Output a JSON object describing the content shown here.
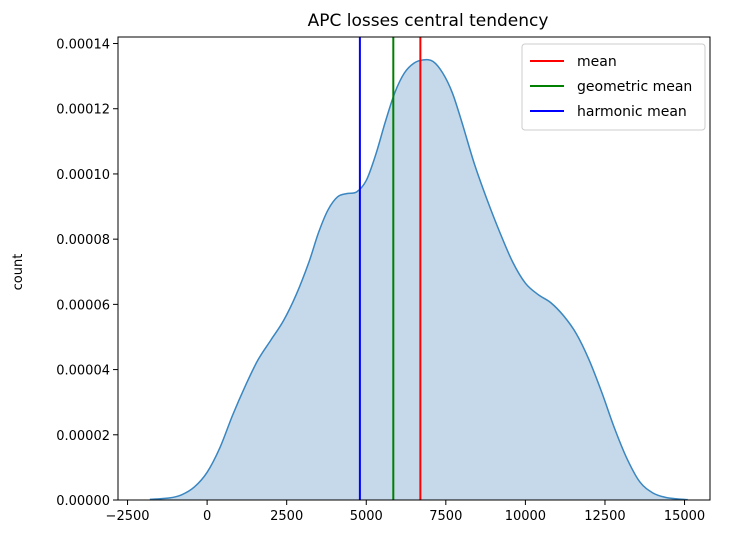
{
  "chart_data": {
    "type": "area",
    "title": "APC losses central tendency",
    "xlabel": "",
    "ylabel": "count",
    "xlim": [
      -2800,
      15800
    ],
    "ylim": [
      0,
      0.000142
    ],
    "xticks": [
      -2500,
      0,
      2500,
      5000,
      7500,
      10000,
      12500,
      15000
    ],
    "xtick_labels": [
      "−2500",
      "0",
      "2500",
      "5000",
      "7500",
      "10000",
      "12500",
      "15000"
    ],
    "yticks": [
      0,
      2e-05,
      4e-05,
      6e-05,
      8e-05,
      0.0001,
      0.00012,
      0.00014
    ],
    "ytick_labels": [
      "0.00000",
      "0.00002",
      "0.00004",
      "0.00006",
      "0.00008",
      "0.00010",
      "0.00012",
      "0.00014"
    ],
    "grid": false,
    "legend_position": "top-right",
    "density": {
      "color": "#3a86c0",
      "fill": "#c5d9ea",
      "x": [
        -1800,
        -1200,
        -800,
        -400,
        0,
        400,
        800,
        1200,
        1600,
        2000,
        2400,
        2800,
        3200,
        3500,
        3800,
        4100,
        4400,
        4700,
        5000,
        5300,
        5600,
        5900,
        6200,
        6500,
        6800,
        7100,
        7400,
        7700,
        8000,
        8400,
        8800,
        9200,
        9600,
        10000,
        10400,
        10800,
        11200,
        11600,
        12000,
        12400,
        12800,
        13200,
        13600,
        14000,
        14400,
        14800,
        15100
      ],
      "y": [
        2e-07,
        6e-07,
        1.6e-06,
        4e-06,
        8.5e-06,
        1.6e-05,
        2.6e-05,
        3.5e-05,
        4.3e-05,
        4.9e-05,
        5.5e-05,
        6.3e-05,
        7.3e-05,
        8.2e-05,
        8.9e-05,
        9.3e-05,
        9.4e-05,
        9.45e-05,
        9.8e-05,
        0.000106,
        0.000116,
        0.000125,
        0.000131,
        0.000134,
        0.000135,
        0.0001345,
        0.000131,
        0.000125,
        0.000116,
        0.000103,
        9.2e-05,
        8.2e-05,
        7.3e-05,
        6.65e-05,
        6.3e-05,
        6.05e-05,
        5.65e-05,
        5.1e-05,
        4.3e-05,
        3.3e-05,
        2.2e-05,
        1.25e-05,
        5.5e-06,
        2.2e-06,
        8e-07,
        3e-07,
        1e-07
      ]
    },
    "series": [
      {
        "name": "mean",
        "color": "#ff0000",
        "value": 6700
      },
      {
        "name": "geometric mean",
        "color": "#008000",
        "value": 5850
      },
      {
        "name": "harmonic mean",
        "color": "#0000ff",
        "value": 4800
      }
    ]
  }
}
